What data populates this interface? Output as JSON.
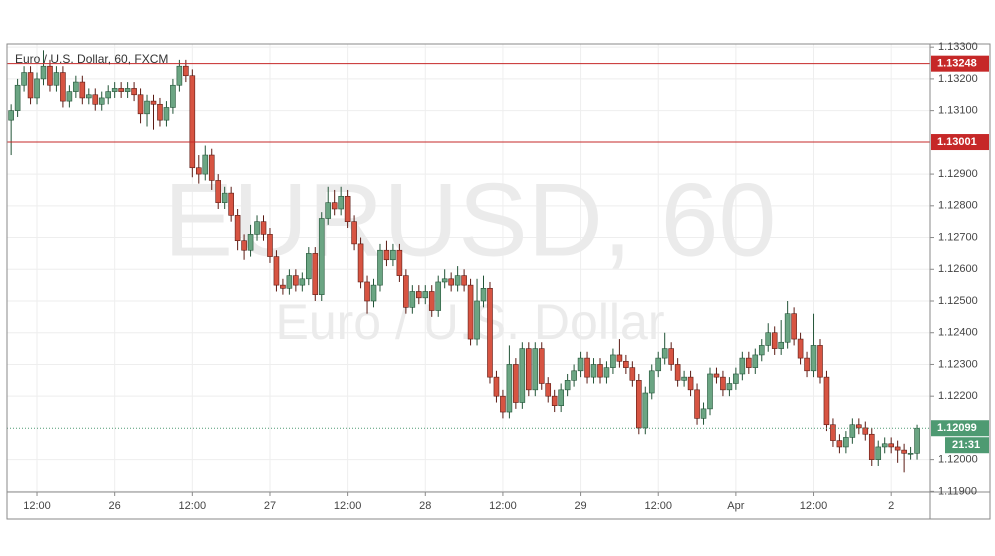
{
  "chart_data": {
    "type": "candlestick",
    "title": "Euro / U.S. Dollar, 60, FXCM",
    "watermark": "EURUSD, 60",
    "watermark_subtitle": "Euro / U.S. Dollar",
    "up_color": "#6ba583",
    "down_color": "#d75442",
    "x": [
      -4,
      -3,
      -2,
      -1,
      0,
      1,
      2,
      3,
      4,
      5,
      6,
      7,
      8,
      9,
      10,
      11,
      12,
      13,
      14,
      15,
      16,
      17,
      18,
      19,
      20,
      21,
      22,
      23,
      24,
      25,
      26,
      27,
      28,
      29,
      30,
      31,
      32,
      33,
      34,
      35,
      36,
      37,
      38,
      39,
      40,
      41,
      42,
      43,
      44,
      45,
      46,
      47,
      48,
      49,
      50,
      51,
      52,
      53,
      54,
      55,
      56,
      57,
      58,
      59,
      60,
      61,
      62,
      63,
      64,
      65,
      66,
      67,
      68,
      69,
      70,
      71,
      72,
      73,
      74,
      75,
      76,
      77,
      78,
      79,
      80,
      81,
      82,
      83,
      84,
      85,
      86,
      87,
      88,
      89,
      90,
      91,
      92,
      93,
      94,
      95,
      96,
      97,
      98,
      99,
      100,
      101,
      102,
      103,
      104,
      105,
      106,
      107,
      108,
      109,
      110,
      111,
      112,
      113,
      114,
      115,
      116,
      117,
      118,
      119,
      120,
      121,
      122,
      123,
      124,
      125,
      126,
      127,
      128,
      129,
      130,
      131,
      132,
      133,
      134,
      135,
      136
    ],
    "open": [
      1.1307,
      1.131,
      1.1318,
      1.1322,
      1.1314,
      1.132,
      1.1324,
      1.1318,
      1.1322,
      1.1313,
      1.1316,
      1.1319,
      1.1314,
      1.1315,
      1.1312,
      1.1314,
      1.1316,
      1.1317,
      1.1316,
      1.1317,
      1.1315,
      1.1309,
      1.1313,
      1.1312,
      1.1307,
      1.1311,
      1.1318,
      1.1324,
      1.1321,
      1.1292,
      1.129,
      1.1296,
      1.1288,
      1.1281,
      1.1284,
      1.1277,
      1.1269,
      1.1266,
      1.1271,
      1.1275,
      1.1271,
      1.1264,
      1.1255,
      1.1254,
      1.1258,
      1.1255,
      1.1257,
      1.1265,
      1.1252,
      1.1276,
      1.1281,
      1.1279,
      1.1283,
      1.1275,
      1.1268,
      1.1256,
      1.125,
      1.1255,
      1.1266,
      1.1263,
      1.1266,
      1.1258,
      1.1248,
      1.1253,
      1.1251,
      1.1253,
      1.1247,
      1.1256,
      1.1257,
      1.1255,
      1.1258,
      1.1255,
      1.1238,
      1.125,
      1.1254,
      1.1226,
      1.122,
      1.1215,
      1.123,
      1.1218,
      1.1235,
      1.1222,
      1.1235,
      1.1224,
      1.122,
      1.1217,
      1.1222,
      1.1225,
      1.1228,
      1.1232,
      1.1226,
      1.123,
      1.1226,
      1.1229,
      1.1233,
      1.1231,
      1.1229,
      1.1225,
      1.121,
      1.1221,
      1.1228,
      1.1232,
      1.1235,
      1.123,
      1.1225,
      1.1226,
      1.1222,
      1.1213,
      1.1216,
      1.1227,
      1.1226,
      1.1222,
      1.1224,
      1.1227,
      1.1232,
      1.1229,
      1.1233,
      1.1236,
      1.124,
      1.1235,
      1.1237,
      1.1246,
      1.1238,
      1.1232,
      1.1228,
      1.1236,
      1.1226,
      1.1211,
      1.1206,
      1.1204,
      1.1207,
      1.1211,
      1.121,
      1.1208,
      1.12,
      1.1204,
      1.1205,
      1.1204,
      1.1203,
      1.1202,
      1.1202
    ],
    "high": [
      1.1312,
      1.132,
      1.1324,
      1.1324,
      1.1322,
      1.1329,
      1.1326,
      1.1324,
      1.1324,
      1.1318,
      1.1321,
      1.1321,
      1.1317,
      1.1317,
      1.1316,
      1.1318,
      1.1319,
      1.1319,
      1.1319,
      1.1319,
      1.1317,
      1.1315,
      1.1315,
      1.1314,
      1.1313,
      1.132,
      1.1326,
      1.1326,
      1.1323,
      1.1296,
      1.1299,
      1.1298,
      1.129,
      1.1286,
      1.1286,
      1.1279,
      1.1271,
      1.1274,
      1.1277,
      1.1277,
      1.1273,
      1.1266,
      1.1257,
      1.126,
      1.126,
      1.1259,
      1.1267,
      1.1267,
      1.1278,
      1.1286,
      1.1285,
      1.1286,
      1.1285,
      1.1277,
      1.127,
      1.1258,
      1.1257,
      1.1268,
      1.1269,
      1.1268,
      1.1268,
      1.126,
      1.1255,
      1.1255,
      1.1255,
      1.1255,
      1.1258,
      1.126,
      1.1259,
      1.1261,
      1.126,
      1.1257,
      1.1257,
      1.1258,
      1.1256,
      1.1228,
      1.1222,
      1.1236,
      1.1232,
      1.1237,
      1.1237,
      1.1237,
      1.1237,
      1.1226,
      1.1222,
      1.1224,
      1.1227,
      1.123,
      1.1234,
      1.1234,
      1.1232,
      1.1232,
      1.1231,
      1.1235,
      1.1238,
      1.1233,
      1.1231,
      1.1227,
      1.1223,
      1.123,
      1.1234,
      1.124,
      1.1237,
      1.1232,
      1.1228,
      1.1228,
      1.1224,
      1.1218,
      1.1229,
      1.1229,
      1.1228,
      1.1226,
      1.1229,
      1.1234,
      1.1234,
      1.1235,
      1.1238,
      1.1243,
      1.1242,
      1.1244,
      1.125,
      1.1248,
      1.124,
      1.1234,
      1.1246,
      1.1238,
      1.1228,
      1.1213,
      1.1208,
      1.1209,
      1.1213,
      1.1213,
      1.1212,
      1.121,
      1.1206,
      1.1207,
      1.1207,
      1.1206,
      1.1205,
      1.1204,
      1.1211
    ],
    "low": [
      1.1296,
      1.1308,
      1.1316,
      1.1312,
      1.1312,
      1.1318,
      1.1316,
      1.1316,
      1.1311,
      1.1311,
      1.1314,
      1.1312,
      1.1312,
      1.131,
      1.131,
      1.1312,
      1.1314,
      1.1314,
      1.1314,
      1.1313,
      1.1306,
      1.1305,
      1.1304,
      1.1305,
      1.1305,
      1.1309,
      1.1316,
      1.1319,
      1.1289,
      1.1287,
      1.1288,
      1.1285,
      1.1279,
      1.1279,
      1.1275,
      1.1266,
      1.1263,
      1.1264,
      1.1269,
      1.1269,
      1.1262,
      1.1253,
      1.1252,
      1.1252,
      1.1253,
      1.1253,
      1.1255,
      1.125,
      1.125,
      1.1274,
      1.1277,
      1.1277,
      1.1273,
      1.1266,
      1.1254,
      1.1246,
      1.1248,
      1.1253,
      1.1261,
      1.1261,
      1.1256,
      1.1246,
      1.1246,
      1.1249,
      1.1249,
      1.1245,
      1.1245,
      1.1254,
      1.1253,
      1.1253,
      1.1253,
      1.1236,
      1.1236,
      1.1248,
      1.1224,
      1.1218,
      1.1213,
      1.1213,
      1.1216,
      1.1216,
      1.122,
      1.122,
      1.1222,
      1.1218,
      1.1215,
      1.1215,
      1.122,
      1.1223,
      1.1226,
      1.1224,
      1.1224,
      1.1224,
      1.1224,
      1.1227,
      1.1229,
      1.1227,
      1.1223,
      1.1208,
      1.1208,
      1.1219,
      1.1226,
      1.123,
      1.1228,
      1.1223,
      1.1223,
      1.122,
      1.1211,
      1.1211,
      1.1214,
      1.1224,
      1.122,
      1.122,
      1.1222,
      1.1225,
      1.1227,
      1.1227,
      1.1231,
      1.1234,
      1.1233,
      1.1233,
      1.1235,
      1.1236,
      1.123,
      1.1226,
      1.1226,
      1.1224,
      1.1209,
      1.1204,
      1.1202,
      1.1202,
      1.1205,
      1.1208,
      1.1206,
      1.1198,
      1.1198,
      1.1202,
      1.1202,
      1.1199,
      1.1196,
      1.12,
      1.12
    ],
    "close": [
      1.131,
      1.1318,
      1.1322,
      1.1314,
      1.132,
      1.1324,
      1.1318,
      1.1322,
      1.1313,
      1.1316,
      1.1319,
      1.1314,
      1.1315,
      1.1312,
      1.1314,
      1.1316,
      1.1317,
      1.1316,
      1.1317,
      1.1315,
      1.1309,
      1.1313,
      1.1312,
      1.1307,
      1.1311,
      1.1318,
      1.1324,
      1.1321,
      1.1292,
      1.129,
      1.1296,
      1.1288,
      1.1281,
      1.1284,
      1.1277,
      1.1269,
      1.1266,
      1.1271,
      1.1275,
      1.1271,
      1.1264,
      1.1255,
      1.1254,
      1.1258,
      1.1255,
      1.1257,
      1.1265,
      1.1252,
      1.1276,
      1.1281,
      1.1279,
      1.1283,
      1.1275,
      1.1268,
      1.1256,
      1.125,
      1.1255,
      1.1266,
      1.1263,
      1.1266,
      1.1258,
      1.1248,
      1.1253,
      1.1251,
      1.1253,
      1.1247,
      1.1256,
      1.1257,
      1.1255,
      1.1258,
      1.1255,
      1.1238,
      1.125,
      1.1254,
      1.1226,
      1.122,
      1.1215,
      1.123,
      1.1218,
      1.1235,
      1.1222,
      1.1235,
      1.1224,
      1.122,
      1.1217,
      1.1222,
      1.1225,
      1.1228,
      1.1232,
      1.1226,
      1.123,
      1.1226,
      1.1229,
      1.1233,
      1.1231,
      1.1229,
      1.1225,
      1.121,
      1.1221,
      1.1228,
      1.1232,
      1.1235,
      1.123,
      1.1225,
      1.1226,
      1.1222,
      1.1213,
      1.1216,
      1.1227,
      1.1226,
      1.1222,
      1.1224,
      1.1227,
      1.1232,
      1.1229,
      1.1233,
      1.1236,
      1.124,
      1.1235,
      1.1237,
      1.1246,
      1.1238,
      1.1232,
      1.1228,
      1.1236,
      1.1226,
      1.1211,
      1.1206,
      1.1204,
      1.1207,
      1.1211,
      1.121,
      1.1208,
      1.12,
      1.1204,
      1.1205,
      1.1204,
      1.1203,
      1.1202,
      1.1202,
      1.12099
    ],
    "xlim": [
      -4.64,
      138.0
    ],
    "xticks": [
      {
        "value": 0,
        "label": "12:00"
      },
      {
        "value": 12,
        "label": "26"
      },
      {
        "value": 24,
        "label": "12:00"
      },
      {
        "value": 36,
        "label": "27"
      },
      {
        "value": 48,
        "label": "12:00"
      },
      {
        "value": 60,
        "label": "28"
      },
      {
        "value": 72,
        "label": "12:00"
      },
      {
        "value": 84,
        "label": "29"
      },
      {
        "value": 96,
        "label": "12:00"
      },
      {
        "value": 108,
        "label": "Apr"
      },
      {
        "value": 120,
        "label": "12:00"
      },
      {
        "value": 132,
        "label": "2"
      }
    ],
    "ylim": [
      1.11898,
      1.1331
    ],
    "yticks": [
      {
        "value": 1.133,
        "label": "1.13300"
      },
      {
        "value": 1.132,
        "label": "1.13200"
      },
      {
        "value": 1.131,
        "label": "1.13100"
      },
      {
        "value": 1.129,
        "label": "1.12900"
      },
      {
        "value": 1.128,
        "label": "1.12800"
      },
      {
        "value": 1.127,
        "label": "1.12700"
      },
      {
        "value": 1.126,
        "label": "1.12600"
      },
      {
        "value": 1.125,
        "label": "1.12500"
      },
      {
        "value": 1.124,
        "label": "1.12400"
      },
      {
        "value": 1.123,
        "label": "1.12300"
      },
      {
        "value": 1.122,
        "label": "1.12200"
      },
      {
        "value": 1.12,
        "label": "1.12000"
      },
      {
        "value": 1.119,
        "label": "1.11900"
      }
    ],
    "grid": true,
    "hlines": [
      {
        "value": 1.13248,
        "color": "#c62828"
      },
      {
        "value": 1.13001,
        "color": "#c62828"
      }
    ],
    "last_price": {
      "value": 1.12099,
      "color": "#4e9a72"
    },
    "countdown": "21:31"
  }
}
